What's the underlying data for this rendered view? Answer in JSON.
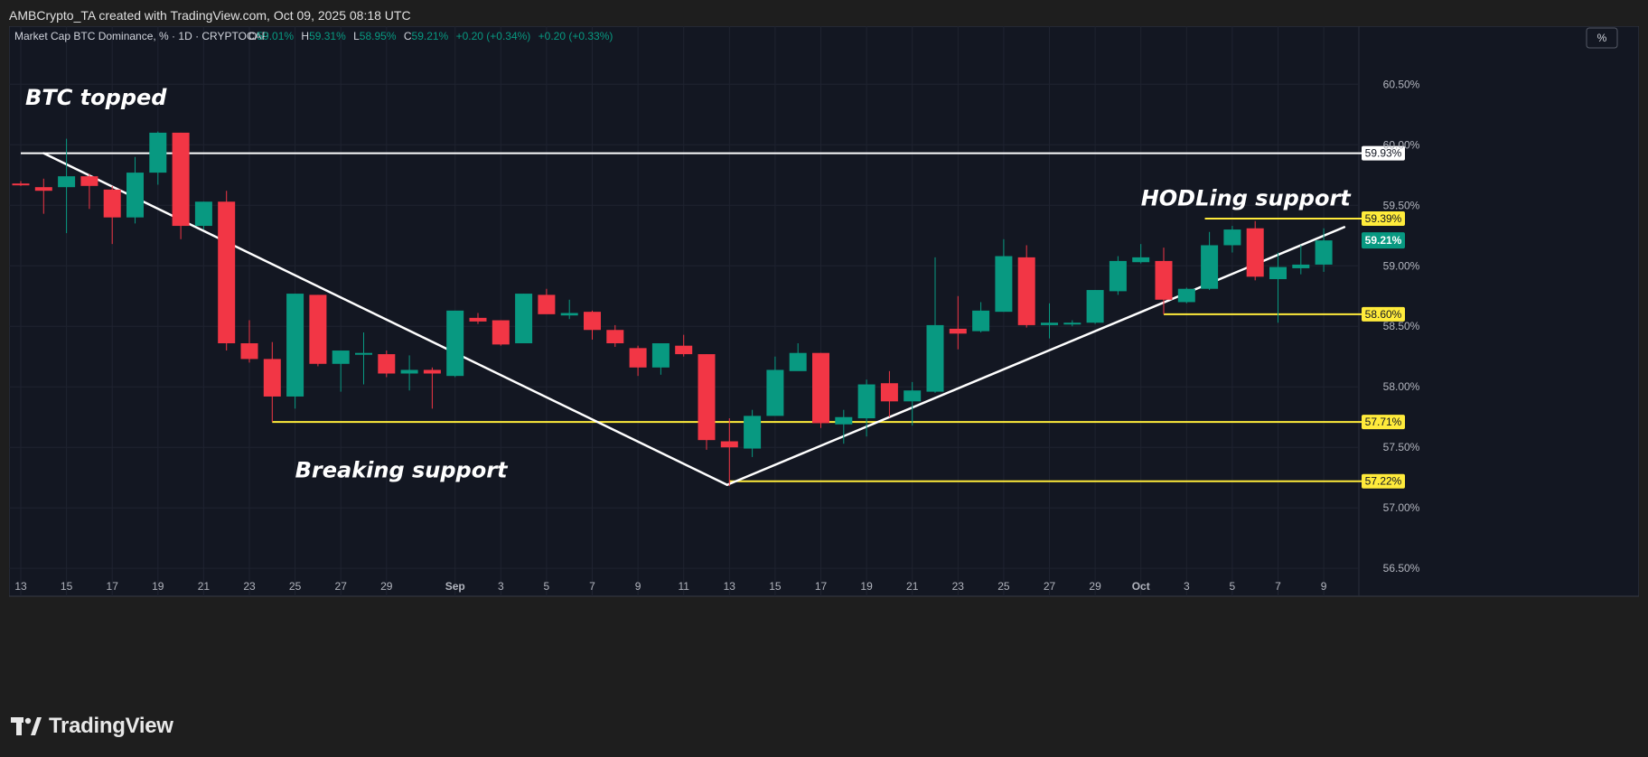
{
  "caption": "AMBCrypto_TA created with TradingView.com, Oct 09, 2025 08:18 UTC",
  "header": {
    "symbol": "Market Cap BTC Dominance, % · 1D · CRYPTOCAP",
    "o_label": "O",
    "o_value": "59.01%",
    "h_label": "H",
    "h_value": "59.31%",
    "l_label": "L",
    "l_value": "58.95%",
    "c_label": "C",
    "c_value": "59.21%",
    "change1": "+0.20 (+0.34%)",
    "change2": "+0.20 (+0.33%)",
    "scale_button": "%"
  },
  "brand": "TradingView",
  "colors": {
    "up": "#089981",
    "down": "#f23645",
    "bg": "#131722",
    "support": "#ffeb3b",
    "trend": "#ffffff"
  },
  "chart_data": {
    "type": "candlestick",
    "y_unit": "%",
    "ylim": [
      56.27,
      60.98
    ],
    "y_ticks": [
      "60.50%",
      "60.00%",
      "59.50%",
      "59.00%",
      "58.50%",
      "58.00%",
      "57.50%",
      "57.00%",
      "56.50%"
    ],
    "y_tick_values": [
      60.5,
      60.0,
      59.5,
      59.0,
      58.5,
      58.0,
      57.5,
      57.0,
      56.5
    ],
    "x_ticks": [
      "13",
      "15",
      "17",
      "19",
      "21",
      "23",
      "25",
      "27",
      "29",
      "Sep",
      "3",
      "5",
      "7",
      "9",
      "11",
      "13",
      "15",
      "17",
      "19",
      "21",
      "23",
      "25",
      "27",
      "29",
      "Oct",
      "3",
      "5",
      "7",
      "9"
    ],
    "x_tick_index": [
      0,
      2,
      4,
      6,
      8,
      10,
      12,
      14,
      16,
      19,
      21,
      23,
      25,
      27,
      29,
      31,
      33,
      35,
      37,
      39,
      41,
      43,
      45,
      47,
      49,
      51,
      53,
      55,
      57
    ],
    "bold_ticks": [
      "Sep",
      "Oct"
    ],
    "candles": [
      {
        "date": "Aug 13",
        "o": 59.68,
        "h": 59.7,
        "l": 59.66,
        "c": 59.67
      },
      {
        "date": "Aug 14",
        "o": 59.65,
        "h": 59.72,
        "l": 59.43,
        "c": 59.62
      },
      {
        "date": "Aug 15",
        "o": 59.65,
        "h": 60.05,
        "l": 59.27,
        "c": 59.74
      },
      {
        "date": "Aug 16",
        "o": 59.74,
        "h": 59.76,
        "l": 59.47,
        "c": 59.66
      },
      {
        "date": "Aug 17",
        "o": 59.63,
        "h": 59.66,
        "l": 59.18,
        "c": 59.4
      },
      {
        "date": "Aug 18",
        "o": 59.4,
        "h": 59.9,
        "l": 59.35,
        "c": 59.77
      },
      {
        "date": "Aug 19",
        "o": 59.77,
        "h": 60.11,
        "l": 59.67,
        "c": 60.1
      },
      {
        "date": "Aug 20",
        "o": 60.1,
        "h": 60.1,
        "l": 59.22,
        "c": 59.33
      },
      {
        "date": "Aug 21",
        "o": 59.33,
        "h": 59.53,
        "l": 59.3,
        "c": 59.53
      },
      {
        "date": "Aug 22",
        "o": 59.53,
        "h": 59.62,
        "l": 58.3,
        "c": 58.36
      },
      {
        "date": "Aug 23",
        "o": 58.36,
        "h": 58.55,
        "l": 58.2,
        "c": 58.23
      },
      {
        "date": "Aug 24",
        "o": 58.23,
        "h": 58.37,
        "l": 57.71,
        "c": 57.92
      },
      {
        "date": "Aug 25",
        "o": 57.92,
        "h": 58.77,
        "l": 57.82,
        "c": 58.77
      },
      {
        "date": "Aug 26",
        "o": 58.76,
        "h": 58.76,
        "l": 58.17,
        "c": 58.19
      },
      {
        "date": "Aug 27",
        "o": 58.19,
        "h": 58.29,
        "l": 57.96,
        "c": 58.3
      },
      {
        "date": "Aug 28",
        "o": 58.28,
        "h": 58.45,
        "l": 58.02,
        "c": 58.28
      },
      {
        "date": "Aug 29",
        "o": 58.27,
        "h": 58.3,
        "l": 58.08,
        "c": 58.11
      },
      {
        "date": "Aug 30",
        "o": 58.11,
        "h": 58.26,
        "l": 57.97,
        "c": 58.14
      },
      {
        "date": "Aug 31",
        "o": 58.14,
        "h": 58.16,
        "l": 57.82,
        "c": 58.11
      },
      {
        "date": "Sep 1",
        "o": 58.09,
        "h": 58.61,
        "l": 58.08,
        "c": 58.63
      },
      {
        "date": "Sep 2",
        "o": 58.57,
        "h": 58.61,
        "l": 58.52,
        "c": 58.54
      },
      {
        "date": "Sep 3",
        "o": 58.55,
        "h": 58.55,
        "l": 58.34,
        "c": 58.35
      },
      {
        "date": "Sep 4",
        "o": 58.36,
        "h": 58.77,
        "l": 58.36,
        "c": 58.77
      },
      {
        "date": "Sep 5",
        "o": 58.76,
        "h": 58.81,
        "l": 58.61,
        "c": 58.6
      },
      {
        "date": "Sep 6",
        "o": 58.59,
        "h": 58.72,
        "l": 58.56,
        "c": 58.61
      },
      {
        "date": "Sep 7",
        "o": 58.62,
        "h": 58.63,
        "l": 58.39,
        "c": 58.47
      },
      {
        "date": "Sep 8",
        "o": 58.47,
        "h": 58.51,
        "l": 58.33,
        "c": 58.36
      },
      {
        "date": "Sep 9",
        "o": 58.32,
        "h": 58.34,
        "l": 58.09,
        "c": 58.16
      },
      {
        "date": "Sep 10",
        "o": 58.16,
        "h": 58.35,
        "l": 58.1,
        "c": 58.36
      },
      {
        "date": "Sep 11",
        "o": 58.34,
        "h": 58.43,
        "l": 58.25,
        "c": 58.27
      },
      {
        "date": "Sep 12",
        "o": 58.27,
        "h": 58.27,
        "l": 57.48,
        "c": 57.56
      },
      {
        "date": "Sep 13",
        "o": 57.55,
        "h": 57.74,
        "l": 57.18,
        "c": 57.5
      },
      {
        "date": "Sep 14",
        "o": 57.49,
        "h": 57.81,
        "l": 57.42,
        "c": 57.76
      },
      {
        "date": "Sep 15",
        "o": 57.76,
        "h": 58.25,
        "l": 57.78,
        "c": 58.14
      },
      {
        "date": "Sep 16",
        "o": 58.13,
        "h": 58.36,
        "l": 58.14,
        "c": 58.28
      },
      {
        "date": "Sep 17",
        "o": 58.28,
        "h": 58.28,
        "l": 57.66,
        "c": 57.7
      },
      {
        "date": "Sep 18",
        "o": 57.69,
        "h": 57.81,
        "l": 57.53,
        "c": 57.75
      },
      {
        "date": "Sep 19",
        "o": 57.74,
        "h": 58.06,
        "l": 57.59,
        "c": 58.02
      },
      {
        "date": "Sep 20",
        "o": 58.03,
        "h": 58.13,
        "l": 57.75,
        "c": 57.88
      },
      {
        "date": "Sep 21",
        "o": 57.88,
        "h": 58.04,
        "l": 57.68,
        "c": 57.97
      },
      {
        "date": "Sep 22",
        "o": 57.96,
        "h": 59.07,
        "l": 57.95,
        "c": 58.51
      },
      {
        "date": "Sep 23",
        "o": 58.48,
        "h": 58.75,
        "l": 58.31,
        "c": 58.44
      },
      {
        "date": "Sep 24",
        "o": 58.46,
        "h": 58.7,
        "l": 58.45,
        "c": 58.63
      },
      {
        "date": "Sep 25",
        "o": 58.62,
        "h": 59.22,
        "l": 58.62,
        "c": 59.08
      },
      {
        "date": "Sep 26",
        "o": 59.07,
        "h": 59.17,
        "l": 58.49,
        "c": 58.51
      },
      {
        "date": "Sep 27",
        "o": 58.51,
        "h": 58.69,
        "l": 58.4,
        "c": 58.53
      },
      {
        "date": "Sep 28",
        "o": 58.52,
        "h": 58.55,
        "l": 58.5,
        "c": 58.53
      },
      {
        "date": "Sep 29",
        "o": 58.53,
        "h": 58.8,
        "l": 58.52,
        "c": 58.8
      },
      {
        "date": "Sep 30",
        "o": 58.79,
        "h": 59.08,
        "l": 58.76,
        "c": 59.04
      },
      {
        "date": "Oct 1",
        "o": 59.03,
        "h": 59.18,
        "l": 59.02,
        "c": 59.07
      },
      {
        "date": "Oct 2",
        "o": 59.04,
        "h": 59.15,
        "l": 58.6,
        "c": 58.72
      },
      {
        "date": "Oct 3",
        "o": 58.7,
        "h": 58.82,
        "l": 58.69,
        "c": 58.81
      },
      {
        "date": "Oct 4",
        "o": 58.81,
        "h": 59.28,
        "l": 58.8,
        "c": 59.17
      },
      {
        "date": "Oct 5",
        "o": 59.17,
        "h": 59.33,
        "l": 59.11,
        "c": 59.3
      },
      {
        "date": "Oct 6",
        "o": 59.31,
        "h": 59.37,
        "l": 58.88,
        "c": 58.91
      },
      {
        "date": "Oct 7",
        "o": 58.89,
        "h": 59.11,
        "l": 58.53,
        "c": 58.99
      },
      {
        "date": "Oct 8",
        "o": 58.98,
        "h": 59.17,
        "l": 58.93,
        "c": 59.01
      },
      {
        "date": "Oct 9",
        "o": 59.01,
        "h": 59.31,
        "l": 58.95,
        "c": 59.21
      }
    ],
    "levels": [
      {
        "value": 59.93,
        "label": "59.93%",
        "from": 0,
        "to": 58.7,
        "color": "#ffffff"
      },
      {
        "value": 59.39,
        "label": "59.39%",
        "from": 51.8,
        "to": 58.7,
        "color": "#ffeb3b"
      },
      {
        "value": 58.6,
        "label": "58.60%",
        "from": 50.0,
        "to": 58.7,
        "color": "#ffeb3b"
      },
      {
        "value": 57.71,
        "label": "57.71%",
        "from": 11.0,
        "to": 58.7,
        "color": "#ffeb3b"
      },
      {
        "value": 57.22,
        "label": "57.22%",
        "from": 31.0,
        "to": 58.7,
        "color": "#ffeb3b"
      }
    ],
    "last_price": {
      "value": 59.21,
      "label": "59.21%"
    },
    "trendlines": [
      {
        "x1": 1.0,
        "y1": 59.93,
        "x2": 30.9,
        "y2": 57.19
      },
      {
        "x1": 30.9,
        "y1": 57.19,
        "x2": 57.9,
        "y2": 59.32
      }
    ],
    "annotations": [
      {
        "text": "BTC topped",
        "x": 0.2,
        "y": 60.33
      },
      {
        "text": "Breaking support",
        "x": 12.0,
        "y": 57.25
      },
      {
        "text": "HODLing support",
        "x": 49.0,
        "y": 59.5
      }
    ]
  }
}
